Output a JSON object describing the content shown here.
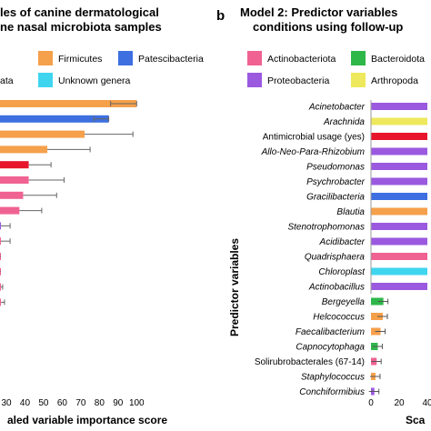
{
  "chart_data": [
    {
      "type": "bar",
      "orientation": "horizontal",
      "title_lines": [
        "les of canine dermatological",
        "ne nasal microbiota samples"
      ],
      "xlabel": "aled variable importance score",
      "ylabel": "",
      "xlim": [
        20,
        100
      ],
      "xticks": [
        30,
        40,
        50,
        60,
        70,
        80,
        90,
        100
      ],
      "legend": [
        {
          "label": "Firmicutes",
          "color": "#F5A04B"
        },
        {
          "label": "Patescibacteria",
          "color": "#3D6FE0"
        },
        {
          "label": "ata",
          "color": "#9B59E0"
        },
        {
          "label": "Unknown genera",
          "color": "#3FD5EF"
        }
      ],
      "bars": [
        {
          "value": 100,
          "err": 0,
          "err_low": 86,
          "color": "#F5A04B"
        },
        {
          "value": 85,
          "err": 0,
          "err_low": 77,
          "color": "#3D6FE0"
        },
        {
          "value": 72,
          "err": 26,
          "err_low": 0,
          "color": "#F5A04B"
        },
        {
          "value": 52,
          "err": 23,
          "err_low": 0,
          "color": "#F5A04B"
        },
        {
          "value": 42,
          "err": 12,
          "err_low": 0,
          "color": "#E8142C"
        },
        {
          "value": 42,
          "err": 19,
          "err_low": 0,
          "color": "#F06292"
        },
        {
          "value": 39,
          "err": 18,
          "err_low": 0,
          "color": "#F06292"
        },
        {
          "value": 37,
          "err": 12,
          "err_low": 0,
          "color": "#F06292"
        },
        {
          "value": 27,
          "err": 5,
          "err_low": 0,
          "color": "#9B59E0"
        },
        {
          "value": 25,
          "err": 7,
          "err_low": 0,
          "color": "#F06292"
        },
        {
          "value": 23,
          "err": 3,
          "err_low": 0,
          "color": "#F06292"
        },
        {
          "value": 21,
          "err": 2,
          "err_low": 0,
          "color": "#F06292"
        },
        {
          "value": 20,
          "err": 8,
          "err_low": 0,
          "color": "#F06292"
        },
        {
          "value": 20,
          "err": 9,
          "err_low": 0,
          "color": "#F06292"
        }
      ]
    },
    {
      "type": "bar",
      "orientation": "horizontal",
      "title_lines": [
        "Model 2: Predictor variables",
        "conditions using follow-up"
      ],
      "xlabel": "Sca",
      "ylabel": "Predictor variables",
      "legend": [
        {
          "label": "Actinobacteriota",
          "color": "#F06292"
        },
        {
          "label": "Bacteroidota",
          "color": "#2EB84A"
        },
        {
          "label": "Proteobacteria",
          "color": "#9B59E0"
        },
        {
          "label": "Arthropoda",
          "color": "#EEE85C"
        }
      ],
      "xtick_labels": [
        "0",
        "20",
        "40"
      ],
      "categories": [
        {
          "label": "Acinetobacter",
          "italic": true,
          "color": "#9B59E0",
          "value": 100
        },
        {
          "label": "Arachnida",
          "italic": true,
          "color": "#EEE85C",
          "value": 100
        },
        {
          "label": "Antimicrobial usage (yes)",
          "italic": false,
          "color": "#E8142C",
          "value": 100
        },
        {
          "label": "Allo-Neo-Para-Rhizobium",
          "italic": true,
          "color": "#9B59E0",
          "value": 100
        },
        {
          "label": "Pseudomonas",
          "italic": true,
          "color": "#9B59E0",
          "value": 100
        },
        {
          "label": "Psychrobacter",
          "italic": true,
          "color": "#9B59E0",
          "value": 100
        },
        {
          "label": "Gracilibacteria",
          "italic": true,
          "color": "#3D6FE0",
          "value": 100
        },
        {
          "label": "Blautia",
          "italic": true,
          "color": "#F5A04B",
          "value": 100
        },
        {
          "label": "Stenotrophomonas",
          "italic": true,
          "color": "#9B59E0",
          "value": 100
        },
        {
          "label": "Acidibacter",
          "italic": true,
          "color": "#9B59E0",
          "value": 100
        },
        {
          "label": "Quadrisphaera",
          "italic": true,
          "color": "#F06292",
          "value": 100
        },
        {
          "label": "Chloroplast",
          "italic": true,
          "color": "#3FD5EF",
          "value": 100
        },
        {
          "label": "Actinobacillus",
          "italic": true,
          "color": "#9B59E0",
          "value": 100
        },
        {
          "label": "Bergeyella",
          "italic": true,
          "color": "#2EB84A",
          "value": 22
        },
        {
          "label": "Helcococcus",
          "italic": true,
          "color": "#F5A04B",
          "value": 21
        },
        {
          "label": "Faecalibacterium",
          "italic": true,
          "color": "#F5A04B",
          "value": 17
        },
        {
          "label": "Capnocytophaga",
          "italic": true,
          "color": "#2EB84A",
          "value": 12
        },
        {
          "label": "Solirubrobacterales (67-14)",
          "italic": false,
          "color": "#F06292",
          "value": 10
        },
        {
          "label": "Staphylococcus",
          "italic": true,
          "color": "#F5A04B",
          "value": 8
        },
        {
          "label": "Conchiformibius",
          "italic": true,
          "color": "#9B59E0",
          "value": 6
        }
      ]
    }
  ],
  "panel_letters": [
    "b"
  ]
}
